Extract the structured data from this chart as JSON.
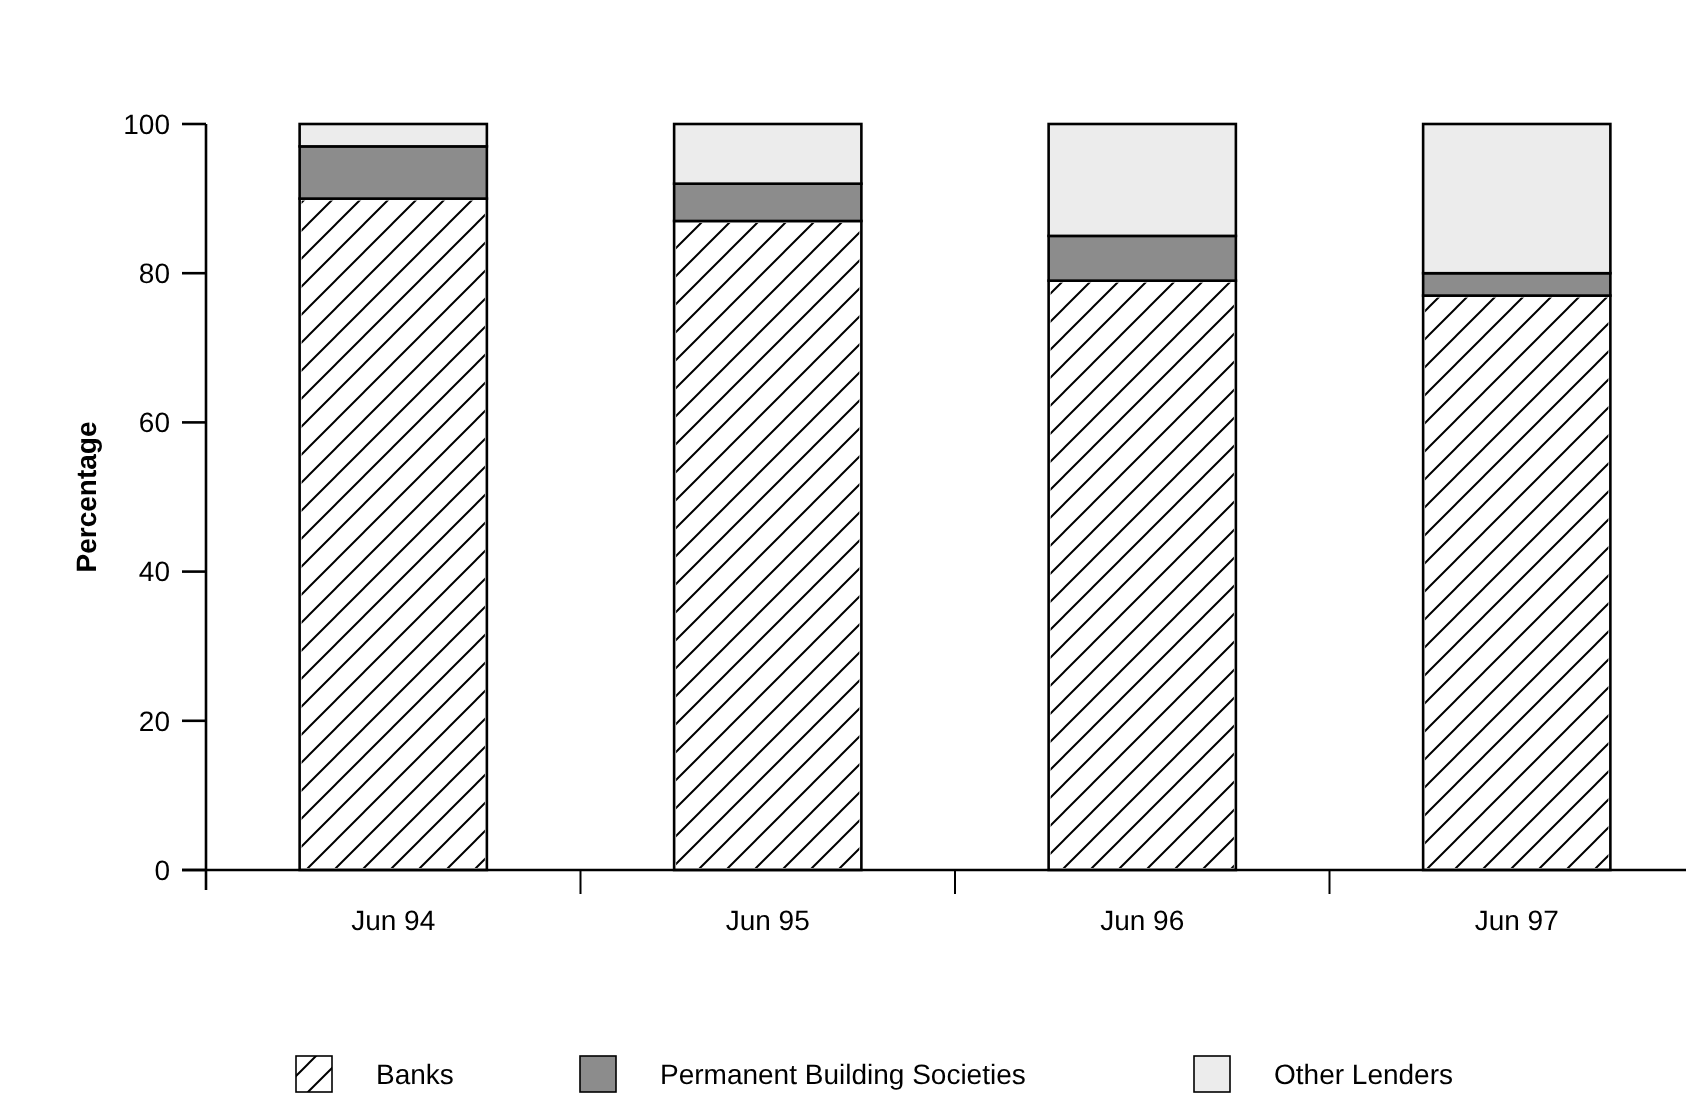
{
  "chart_data": {
    "type": "bar",
    "stacked": true,
    "ylabel": "Percentage",
    "categories": [
      "Jun 94",
      "Jun 95",
      "Jun 96",
      "Jun 97"
    ],
    "series": [
      {
        "name": "Banks",
        "color": "#ffffff",
        "values": [
          90,
          87,
          79,
          77
        ]
      },
      {
        "name": "Permanent Building Societies",
        "color": "#8c8c8c",
        "values": [
          7,
          5,
          6,
          3
        ]
      },
      {
        "name": "Other Lenders",
        "color": "#ececec",
        "values": [
          3,
          8,
          15,
          20
        ]
      }
    ],
    "ylim": [
      0,
      100
    ],
    "yticks": [
      0,
      20,
      40,
      60,
      80,
      100
    ],
    "legend": "bottom"
  }
}
